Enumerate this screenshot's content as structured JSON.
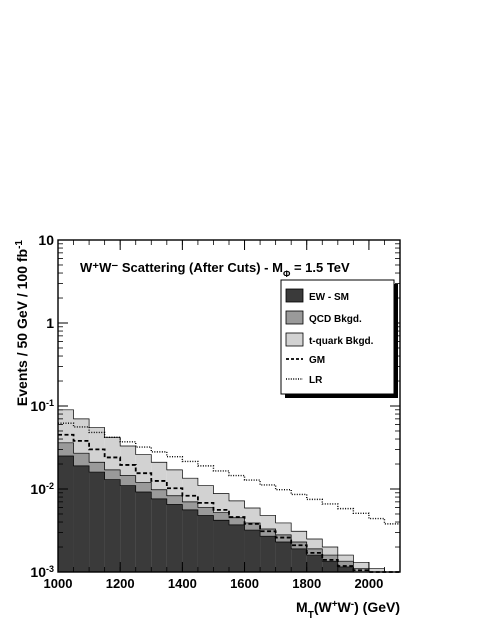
{
  "chart_data": {
    "type": "area",
    "title": "W⁺W⁻ Scattering (After Cuts) - M",
    "title_sub": "Φ",
    "title_tail": " = 1.5 TeV",
    "xlabel_main": "M",
    "xlabel_sub": "T",
    "xlabel_rest": "(W",
    "xlabel_sup1": "+",
    "xlabel_mid": "W",
    "xlabel_sup2": "-",
    "xlabel_end": ") (GeV)",
    "ylabel_main": "Events / 50 GeV / 100 fb",
    "ylabel_sup": "-1",
    "y_scale": "log",
    "xlim": [
      1000,
      2100
    ],
    "ylim": [
      0.001,
      10
    ],
    "x_ticks": [
      1000,
      1200,
      1400,
      1600,
      1800,
      2000
    ],
    "x_tick_labels": [
      "1000",
      "1200",
      "1400",
      "1600",
      "1800",
      "2000"
    ],
    "y_ticks": [
      {
        "value": 0.001,
        "base": "10",
        "exp": "-3"
      },
      {
        "value": 0.01,
        "base": "10",
        "exp": "-2"
      },
      {
        "value": 0.1,
        "base": "10",
        "exp": "-1"
      },
      {
        "value": 1,
        "base": "1",
        "exp": ""
      },
      {
        "value": 10,
        "base": "10",
        "exp": ""
      }
    ],
    "bin_edges": [
      1000,
      1050,
      1100,
      1150,
      1200,
      1250,
      1300,
      1350,
      1400,
      1450,
      1500,
      1550,
      1600,
      1650,
      1700,
      1750,
      1800,
      1850,
      1900,
      1950,
      2000,
      2050,
      2100
    ],
    "series": [
      {
        "name": "EW - SM",
        "style": "filled",
        "color": "#3a3a3a",
        "values": [
          0.025,
          0.019,
          0.016,
          0.013,
          0.011,
          0.0092,
          0.0076,
          0.0065,
          0.0056,
          0.0048,
          0.0042,
          0.0037,
          0.0032,
          0.0027,
          0.0023,
          0.0019,
          0.0016,
          0.00135,
          0.00115,
          0.001,
          0.001,
          0.001
        ]
      },
      {
        "name": "QCD Bkgd.",
        "style": "filled",
        "color": "#9a9a9a",
        "values": [
          0.036,
          0.027,
          0.021,
          0.017,
          0.0145,
          0.012,
          0.0098,
          0.0083,
          0.007,
          0.006,
          0.0052,
          0.0045,
          0.0039,
          0.0033,
          0.0028,
          0.0023,
          0.0019,
          0.0016,
          0.00135,
          0.0011,
          0.001,
          0.001
        ]
      },
      {
        "name": "t-quark Bkgd.",
        "style": "filled",
        "color": "#d2d2d2",
        "values": [
          0.09,
          0.07,
          0.055,
          0.042,
          0.033,
          0.026,
          0.021,
          0.017,
          0.0135,
          0.011,
          0.0088,
          0.0072,
          0.0059,
          0.0048,
          0.0039,
          0.0031,
          0.0025,
          0.002,
          0.0016,
          0.0013,
          0.0011,
          0.001
        ]
      },
      {
        "name": "GM",
        "style": "dashed",
        "color": "#000000",
        "values": [
          0.045,
          0.038,
          0.03,
          0.024,
          0.0195,
          0.0155,
          0.0125,
          0.0102,
          0.0083,
          0.0068,
          0.0056,
          0.0046,
          0.0038,
          0.0031,
          0.0026,
          0.0021,
          0.0017,
          0.0014,
          0.00118,
          0.00105,
          0.001,
          0.001
        ]
      },
      {
        "name": "LR",
        "style": "dotted",
        "color": "#000000",
        "values": [
          0.062,
          0.056,
          0.048,
          0.042,
          0.037,
          0.032,
          0.028,
          0.0245,
          0.0215,
          0.019,
          0.0165,
          0.0145,
          0.0128,
          0.0112,
          0.0098,
          0.0086,
          0.0075,
          0.0066,
          0.0058,
          0.0051,
          0.0044,
          0.0038
        ]
      }
    ],
    "legend_position": "top-right",
    "grid": false
  }
}
